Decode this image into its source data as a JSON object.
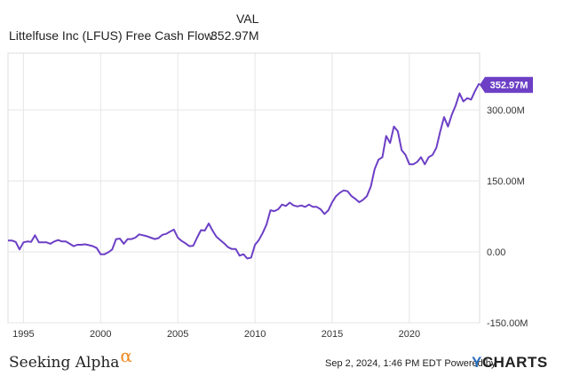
{
  "legend": {
    "column_header": "VAL",
    "series_label": "Littelfuse Inc (LFUS) Free Cash Flow",
    "series_value": "352.97M"
  },
  "footer": {
    "brand": "Seeking Alpha",
    "brand_symbol": "α",
    "timestamp": "Sep 2, 2024, 1:46 PM EDT Powered by",
    "provider_y": "Y",
    "provider_rest": "CHARTS"
  },
  "colors": {
    "line": "#6c3fc5",
    "badge": "#6c3fc5",
    "grid": "#e6e6e6",
    "brand_accent": "#f08a24",
    "provider_accent": "#2a6fbd"
  },
  "chart_data": {
    "type": "line",
    "title": "",
    "xlabel": "",
    "ylabel": "",
    "xlim": [
      1994.0,
      2024.55
    ],
    "ylim": [
      -150,
      420
    ],
    "x_ticks": [
      1995,
      2000,
      2005,
      2010,
      2015,
      2020
    ],
    "x_tick_labels": [
      "1995",
      "2000",
      "2005",
      "2010",
      "2015",
      "2020"
    ],
    "y_ticks": [
      -150,
      0,
      150,
      300
    ],
    "y_tick_labels": [
      "-150.00M",
      "0.00",
      "150.00M",
      "300.00M"
    ],
    "grid": true,
    "last_value_label": "352.97M",
    "series": [
      {
        "name": "Littelfuse Inc (LFUS) Free Cash Flow",
        "points": [
          [
            1994.0,
            24
          ],
          [
            1994.25,
            24
          ],
          [
            1994.5,
            21
          ],
          [
            1994.75,
            5
          ],
          [
            1995.0,
            20
          ],
          [
            1995.25,
            22
          ],
          [
            1995.5,
            21
          ],
          [
            1995.75,
            35
          ],
          [
            1996.0,
            20
          ],
          [
            1996.25,
            20
          ],
          [
            1996.5,
            20
          ],
          [
            1996.75,
            17
          ],
          [
            1997.0,
            22
          ],
          [
            1997.25,
            25
          ],
          [
            1997.5,
            22
          ],
          [
            1997.75,
            22
          ],
          [
            1998.0,
            17
          ],
          [
            1998.25,
            12
          ],
          [
            1998.5,
            15
          ],
          [
            1998.75,
            15
          ],
          [
            1999.0,
            16
          ],
          [
            1999.25,
            14
          ],
          [
            1999.5,
            12
          ],
          [
            1999.75,
            8
          ],
          [
            2000.0,
            -5
          ],
          [
            2000.25,
            -5
          ],
          [
            2000.5,
            -1
          ],
          [
            2000.75,
            5
          ],
          [
            2001.0,
            27
          ],
          [
            2001.25,
            28
          ],
          [
            2001.5,
            17
          ],
          [
            2001.75,
            27
          ],
          [
            2002.0,
            27
          ],
          [
            2002.25,
            30
          ],
          [
            2002.5,
            37
          ],
          [
            2002.75,
            35
          ],
          [
            2003.0,
            33
          ],
          [
            2003.25,
            30
          ],
          [
            2003.5,
            27
          ],
          [
            2003.75,
            29
          ],
          [
            2004.0,
            36
          ],
          [
            2004.25,
            38
          ],
          [
            2004.5,
            43
          ],
          [
            2004.75,
            47
          ],
          [
            2005.0,
            30
          ],
          [
            2005.25,
            23
          ],
          [
            2005.5,
            18
          ],
          [
            2005.75,
            12
          ],
          [
            2006.0,
            13
          ],
          [
            2006.25,
            30
          ],
          [
            2006.5,
            46
          ],
          [
            2006.75,
            45
          ],
          [
            2007.0,
            60
          ],
          [
            2007.25,
            45
          ],
          [
            2007.5,
            32
          ],
          [
            2007.75,
            25
          ],
          [
            2008.0,
            18
          ],
          [
            2008.25,
            10
          ],
          [
            2008.5,
            6
          ],
          [
            2008.75,
            6
          ],
          [
            2009.0,
            -8
          ],
          [
            2009.25,
            -5
          ],
          [
            2009.5,
            -14
          ],
          [
            2009.75,
            -12
          ],
          [
            2010.0,
            15
          ],
          [
            2010.25,
            25
          ],
          [
            2010.5,
            40
          ],
          [
            2010.75,
            58
          ],
          [
            2011.0,
            88
          ],
          [
            2011.25,
            86
          ],
          [
            2011.5,
            90
          ],
          [
            2011.75,
            100
          ],
          [
            2012.0,
            97
          ],
          [
            2012.25,
            104
          ],
          [
            2012.5,
            98
          ],
          [
            2012.75,
            96
          ],
          [
            2013.0,
            98
          ],
          [
            2013.25,
            95
          ],
          [
            2013.5,
            100
          ],
          [
            2013.75,
            95
          ],
          [
            2014.0,
            95
          ],
          [
            2014.25,
            90
          ],
          [
            2014.5,
            80
          ],
          [
            2014.75,
            88
          ],
          [
            2015.0,
            105
          ],
          [
            2015.25,
            118
          ],
          [
            2015.5,
            125
          ],
          [
            2015.75,
            130
          ],
          [
            2016.0,
            128
          ],
          [
            2016.25,
            118
          ],
          [
            2016.5,
            112
          ],
          [
            2016.75,
            105
          ],
          [
            2017.0,
            110
          ],
          [
            2017.25,
            118
          ],
          [
            2017.5,
            138
          ],
          [
            2017.75,
            175
          ],
          [
            2018.0,
            195
          ],
          [
            2018.25,
            200
          ],
          [
            2018.5,
            245
          ],
          [
            2018.75,
            230
          ],
          [
            2019.0,
            265
          ],
          [
            2019.25,
            255
          ],
          [
            2019.5,
            215
          ],
          [
            2019.75,
            205
          ],
          [
            2020.0,
            185
          ],
          [
            2020.25,
            185
          ],
          [
            2020.5,
            190
          ],
          [
            2020.75,
            200
          ],
          [
            2021.0,
            185
          ],
          [
            2021.25,
            200
          ],
          [
            2021.5,
            205
          ],
          [
            2021.75,
            220
          ],
          [
            2022.0,
            255
          ],
          [
            2022.25,
            285
          ],
          [
            2022.5,
            265
          ],
          [
            2022.75,
            290
          ],
          [
            2023.0,
            310
          ],
          [
            2023.25,
            335
          ],
          [
            2023.5,
            318
          ],
          [
            2023.75,
            325
          ],
          [
            2024.0,
            322
          ],
          [
            2024.25,
            340
          ],
          [
            2024.5,
            355
          ],
          [
            2024.55,
            353
          ]
        ]
      }
    ]
  }
}
